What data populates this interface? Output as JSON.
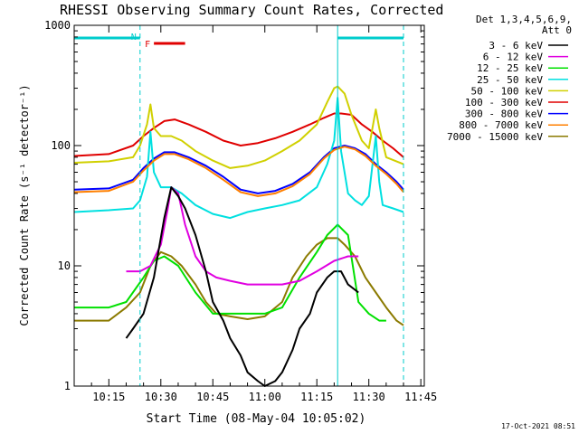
{
  "chart_data": {
    "type": "line",
    "title": "RHESSI Observing Summary Count Rates, Corrected",
    "xlabel": "Start Time (08-May-04 10:05:02)",
    "ylabel": "Corrected Count Rate (s⁻¹ detector⁻¹)",
    "y_scale": "log",
    "ylim": [
      1,
      1000
    ],
    "xlim": [
      "10:05",
      "11:46"
    ],
    "xticks": [
      "10:15",
      "10:30",
      "10:45",
      "11:00",
      "11:15",
      "11:30",
      "11:45"
    ],
    "yticks": [
      "1",
      "10",
      "100",
      "1000"
    ],
    "legend_header": [
      "Det 1,3,4,5,6,9,",
      "Att 0"
    ],
    "legend_placement": "right",
    "timestamp": "17-Oct-2021 08:51",
    "flags": [
      {
        "label": "N",
        "color": "#00cccc",
        "x_range": [
          "10:05",
          "10:24"
        ]
      },
      {
        "label": "F",
        "color": "#e00000",
        "x_range": [
          "10:28",
          "10:37"
        ]
      },
      {
        "label": "",
        "color": "#00cccc",
        "x_range": [
          "11:21",
          "11:40"
        ]
      }
    ],
    "vlines": [
      {
        "x": "10:24",
        "style": "dashed",
        "color": "#00cccc"
      },
      {
        "x": "11:21",
        "style": "solid",
        "color": "#00cccc"
      },
      {
        "x": "11:40",
        "style": "dashed",
        "color": "#00cccc"
      }
    ],
    "series": [
      {
        "name": "3 - 6 keV",
        "color": "#000000",
        "x": [
          "10:20",
          "10:22",
          "10:25",
          "10:28",
          "10:31",
          "10:33",
          "10:35",
          "10:37",
          "10:40",
          "10:43",
          "10:45",
          "10:48",
          "10:50",
          "10:53",
          "10:55",
          "10:58",
          "11:00",
          "11:03",
          "11:05",
          "11:08",
          "11:10",
          "11:13",
          "11:15",
          "11:18",
          "11:20",
          "11:22",
          "11:24",
          "11:27"
        ],
        "values": [
          2.5,
          3.0,
          4.0,
          8,
          25,
          45,
          38,
          30,
          18,
          9,
          5,
          3.5,
          2.5,
          1.8,
          1.3,
          1.1,
          1.0,
          1.1,
          1.3,
          2.0,
          3.0,
          4.0,
          6,
          8,
          9,
          9,
          7,
          6
        ]
      },
      {
        "name": "6 - 12 keV",
        "color": "#e000e0",
        "x": [
          "10:20",
          "10:24",
          "10:27",
          "10:30",
          "10:32",
          "10:33",
          "10:35",
          "10:37",
          "10:40",
          "10:43",
          "10:46",
          "10:50",
          "10:55",
          "11:00",
          "11:05",
          "11:10",
          "11:15",
          "11:20",
          "11:24",
          "11:27"
        ],
        "values": [
          9,
          9,
          10,
          15,
          30,
          45,
          40,
          22,
          12,
          9,
          8,
          7.5,
          7,
          7,
          7,
          7.5,
          9,
          11,
          12,
          12
        ]
      },
      {
        "name": "12 - 25 keV",
        "color": "#00e000",
        "x": [
          "10:05",
          "10:15",
          "10:20",
          "10:25",
          "10:28",
          "10:31",
          "10:35",
          "10:40",
          "10:45",
          "10:50",
          "10:55",
          "11:00",
          "11:05",
          "11:10",
          "11:15",
          "11:18",
          "11:21",
          "11:24",
          "11:27",
          "11:30",
          "11:33",
          "11:35"
        ],
        "values": [
          4.5,
          4.5,
          5,
          8,
          11,
          12,
          10,
          6,
          4,
          4,
          4,
          4,
          4.5,
          8,
          13,
          18,
          22,
          18,
          5,
          4,
          3.5,
          3.5
        ]
      },
      {
        "name": "25 - 50 keV",
        "color": "#00e0e0",
        "x": [
          "10:05",
          "10:15",
          "10:22",
          "10:24",
          "10:26",
          "10:27",
          "10:28",
          "10:30",
          "10:33",
          "10:36",
          "10:40",
          "10:45",
          "10:50",
          "10:55",
          "11:00",
          "11:05",
          "11:10",
          "11:15",
          "11:18",
          "11:20",
          "11:21",
          "11:22",
          "11:24",
          "11:26",
          "11:28",
          "11:30",
          "11:32",
          "11:33",
          "11:34",
          "11:37",
          "11:40"
        ],
        "values": [
          28,
          29,
          30,
          35,
          55,
          130,
          60,
          45,
          45,
          40,
          32,
          27,
          25,
          28,
          30,
          32,
          35,
          45,
          70,
          110,
          250,
          90,
          40,
          35,
          32,
          38,
          120,
          50,
          32,
          30,
          28
        ]
      },
      {
        "name": "50 - 100 keV",
        "color": "#d0d000",
        "x": [
          "10:05",
          "10:15",
          "10:22",
          "10:24",
          "10:26",
          "10:27",
          "10:28",
          "10:30",
          "10:33",
          "10:36",
          "10:40",
          "10:45",
          "10:50",
          "10:55",
          "11:00",
          "11:05",
          "11:10",
          "11:15",
          "11:18",
          "11:20",
          "11:21",
          "11:23",
          "11:25",
          "11:28",
          "11:30",
          "11:32",
          "11:33",
          "11:35",
          "11:40"
        ],
        "values": [
          72,
          74,
          80,
          100,
          150,
          220,
          140,
          120,
          120,
          110,
          90,
          75,
          65,
          68,
          75,
          90,
          110,
          150,
          230,
          300,
          310,
          270,
          180,
          110,
          95,
          200,
          140,
          80,
          70
        ]
      },
      {
        "name": "100 - 300 keV",
        "color": "#e00000",
        "x": [
          "10:05",
          "10:15",
          "10:22",
          "10:25",
          "10:28",
          "10:31",
          "10:34",
          "10:38",
          "10:43",
          "10:48",
          "10:53",
          "10:58",
          "11:03",
          "11:08",
          "11:13",
          "11:17",
          "11:20",
          "11:22",
          "11:25",
          "11:28",
          "11:31",
          "11:34",
          "11:37",
          "11:40"
        ],
        "values": [
          82,
          85,
          100,
          120,
          140,
          160,
          165,
          150,
          130,
          110,
          100,
          105,
          115,
          130,
          150,
          170,
          185,
          185,
          180,
          150,
          130,
          110,
          95,
          80
        ]
      },
      {
        "name": "300 - 800 keV",
        "color": "#0000ff",
        "x": [
          "10:05",
          "10:15",
          "10:22",
          "10:25",
          "10:28",
          "10:31",
          "10:34",
          "10:38",
          "10:43",
          "10:48",
          "10:53",
          "10:58",
          "11:03",
          "11:08",
          "11:13",
          "11:17",
          "11:20",
          "11:23",
          "11:26",
          "11:29",
          "11:32",
          "11:35",
          "11:38",
          "11:40"
        ],
        "values": [
          43,
          44,
          52,
          65,
          78,
          88,
          88,
          80,
          68,
          55,
          43,
          40,
          42,
          48,
          60,
          80,
          95,
          100,
          95,
          85,
          70,
          60,
          50,
          43
        ]
      },
      {
        "name": "800 - 7000 keV",
        "color": "#ff8000",
        "x": [
          "10:05",
          "10:15",
          "10:22",
          "10:25",
          "10:28",
          "10:31",
          "10:34",
          "10:38",
          "10:43",
          "10:48",
          "10:53",
          "10:58",
          "11:03",
          "11:08",
          "11:13",
          "11:17",
          "11:20",
          "11:23",
          "11:26",
          "11:29",
          "11:32",
          "11:35",
          "11:38",
          "11:40"
        ],
        "values": [
          41,
          42,
          50,
          62,
          75,
          85,
          85,
          77,
          65,
          52,
          41,
          38,
          40,
          46,
          58,
          78,
          92,
          98,
          93,
          82,
          68,
          58,
          48,
          41
        ]
      },
      {
        "name": "7000 - 15000 keV",
        "color": "#8b7a00",
        "x": [
          "10:05",
          "10:15",
          "10:20",
          "10:24",
          "10:27",
          "10:30",
          "10:33",
          "10:36",
          "10:40",
          "10:43",
          "10:46",
          "10:50",
          "10:55",
          "11:00",
          "11:05",
          "11:08",
          "11:12",
          "11:15",
          "11:18",
          "11:21",
          "11:23",
          "11:26",
          "11:29",
          "11:32",
          "11:35",
          "11:38",
          "11:40"
        ],
        "values": [
          3.5,
          3.5,
          4.5,
          6,
          10,
          13,
          12,
          10,
          7,
          5,
          4,
          3.8,
          3.6,
          3.8,
          5,
          8,
          12,
          15,
          17,
          17,
          15,
          12,
          8,
          6,
          4.5,
          3.5,
          3.2
        ]
      }
    ]
  }
}
